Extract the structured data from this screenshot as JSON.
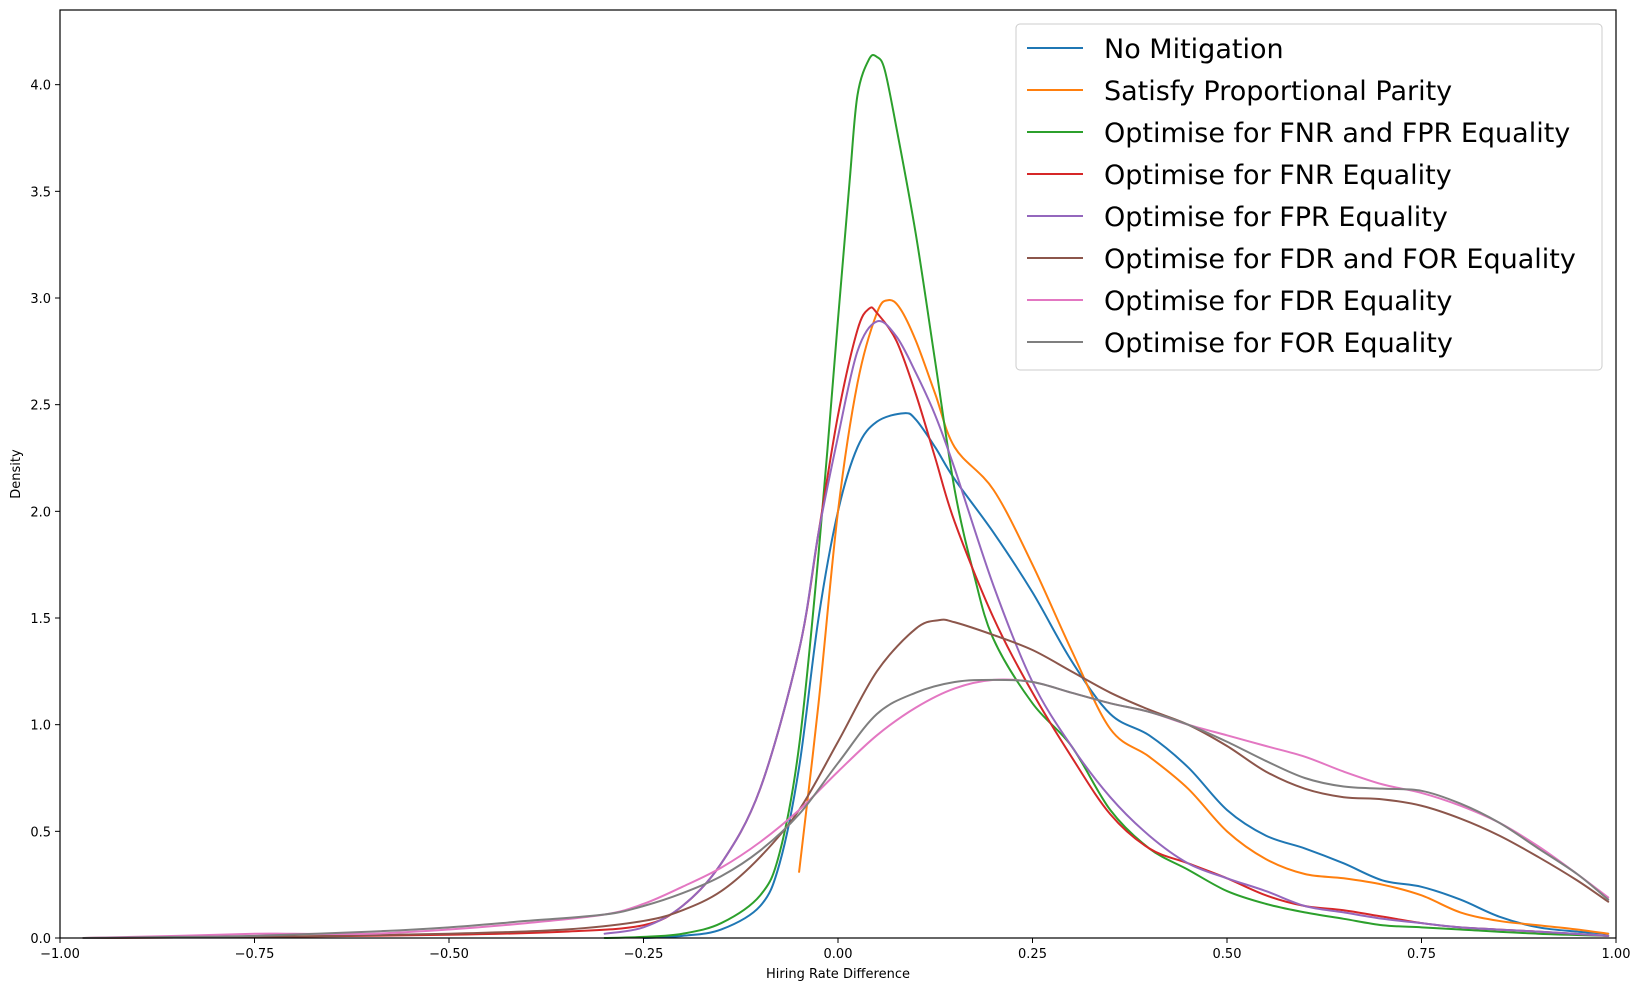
{
  "chart_data": {
    "type": "line",
    "title": "",
    "xlabel": "Hiring Rate Difference",
    "ylabel": "Density",
    "xlim": [
      -1.0,
      1.0
    ],
    "ylim": [
      0.0,
      4.35
    ],
    "xticks": [
      -1.0,
      -0.75,
      -0.5,
      -0.25,
      0.0,
      0.25,
      0.5,
      0.75,
      1.0
    ],
    "xtick_labels": [
      "−1.00",
      "−0.75",
      "−0.50",
      "−0.25",
      "0.00",
      "0.25",
      "0.50",
      "0.75",
      "1.00"
    ],
    "yticks": [
      0.0,
      0.5,
      1.0,
      1.5,
      2.0,
      2.5,
      3.0,
      3.5,
      4.0
    ],
    "ytick_labels": [
      "0.0",
      "0.5",
      "1.0",
      "1.5",
      "2.0",
      "2.5",
      "3.0",
      "3.5",
      "4.0"
    ],
    "grid": false,
    "legend_position": "top-right",
    "series": [
      {
        "name": "No Mitigation",
        "color": "#1f77b4",
        "points": [
          [
            -0.25,
            0.0
          ],
          [
            -0.2,
            0.01
          ],
          [
            -0.15,
            0.04
          ],
          [
            -0.1,
            0.15
          ],
          [
            -0.075,
            0.35
          ],
          [
            -0.05,
            0.8
          ],
          [
            -0.025,
            1.5
          ],
          [
            0.0,
            2.0
          ],
          [
            0.025,
            2.3
          ],
          [
            0.05,
            2.42
          ],
          [
            0.085,
            2.46
          ],
          [
            0.1,
            2.43
          ],
          [
            0.125,
            2.3
          ],
          [
            0.15,
            2.15
          ],
          [
            0.2,
            1.9
          ],
          [
            0.25,
            1.62
          ],
          [
            0.3,
            1.3
          ],
          [
            0.35,
            1.05
          ],
          [
            0.4,
            0.95
          ],
          [
            0.45,
            0.8
          ],
          [
            0.5,
            0.6
          ],
          [
            0.55,
            0.48
          ],
          [
            0.6,
            0.42
          ],
          [
            0.65,
            0.35
          ],
          [
            0.7,
            0.27
          ],
          [
            0.75,
            0.24
          ],
          [
            0.8,
            0.18
          ],
          [
            0.85,
            0.1
          ],
          [
            0.9,
            0.05
          ],
          [
            0.95,
            0.03
          ],
          [
            0.99,
            0.02
          ]
        ]
      },
      {
        "name": "Satisfy Proportional Parity",
        "color": "#ff7f0e",
        "points": [
          [
            -0.05,
            0.31
          ],
          [
            -0.025,
            1.1
          ],
          [
            0.0,
            2.0
          ],
          [
            0.025,
            2.6
          ],
          [
            0.05,
            2.93
          ],
          [
            0.065,
            2.99
          ],
          [
            0.08,
            2.95
          ],
          [
            0.1,
            2.8
          ],
          [
            0.125,
            2.55
          ],
          [
            0.15,
            2.3
          ],
          [
            0.2,
            2.1
          ],
          [
            0.25,
            1.75
          ],
          [
            0.3,
            1.35
          ],
          [
            0.35,
            0.98
          ],
          [
            0.4,
            0.85
          ],
          [
            0.45,
            0.7
          ],
          [
            0.5,
            0.5
          ],
          [
            0.55,
            0.37
          ],
          [
            0.6,
            0.3
          ],
          [
            0.65,
            0.28
          ],
          [
            0.7,
            0.25
          ],
          [
            0.75,
            0.2
          ],
          [
            0.8,
            0.12
          ],
          [
            0.85,
            0.08
          ],
          [
            0.9,
            0.06
          ],
          [
            0.95,
            0.04
          ],
          [
            0.99,
            0.02
          ]
        ]
      },
      {
        "name": "Optimise for FNR and FPR Equality",
        "color": "#2ca02c",
        "points": [
          [
            -0.3,
            0.0
          ],
          [
            -0.25,
            0.005
          ],
          [
            -0.2,
            0.02
          ],
          [
            -0.15,
            0.07
          ],
          [
            -0.1,
            0.2
          ],
          [
            -0.075,
            0.4
          ],
          [
            -0.05,
            0.9
          ],
          [
            -0.025,
            1.8
          ],
          [
            0.0,
            2.9
          ],
          [
            0.015,
            3.55
          ],
          [
            0.025,
            3.95
          ],
          [
            0.04,
            4.12
          ],
          [
            0.05,
            4.13
          ],
          [
            0.06,
            4.07
          ],
          [
            0.075,
            3.8
          ],
          [
            0.1,
            3.3
          ],
          [
            0.125,
            2.7
          ],
          [
            0.15,
            2.1
          ],
          [
            0.175,
            1.7
          ],
          [
            0.2,
            1.4
          ],
          [
            0.25,
            1.1
          ],
          [
            0.3,
            0.9
          ],
          [
            0.35,
            0.6
          ],
          [
            0.4,
            0.42
          ],
          [
            0.45,
            0.32
          ],
          [
            0.5,
            0.22
          ],
          [
            0.55,
            0.16
          ],
          [
            0.6,
            0.12
          ],
          [
            0.65,
            0.09
          ],
          [
            0.7,
            0.06
          ],
          [
            0.75,
            0.05
          ],
          [
            0.8,
            0.04
          ],
          [
            0.9,
            0.02
          ],
          [
            0.99,
            0.01
          ]
        ]
      },
      {
        "name": "Optimise for FNR Equality",
        "color": "#d62728",
        "points": [
          [
            -0.97,
            0.0
          ],
          [
            -0.75,
            0.005
          ],
          [
            -0.5,
            0.015
          ],
          [
            -0.35,
            0.03
          ],
          [
            -0.25,
            0.06
          ],
          [
            -0.2,
            0.15
          ],
          [
            -0.15,
            0.35
          ],
          [
            -0.1,
            0.7
          ],
          [
            -0.05,
            1.35
          ],
          [
            -0.025,
            1.9
          ],
          [
            0.0,
            2.45
          ],
          [
            0.025,
            2.85
          ],
          [
            0.04,
            2.95
          ],
          [
            0.05,
            2.93
          ],
          [
            0.075,
            2.8
          ],
          [
            0.1,
            2.55
          ],
          [
            0.125,
            2.25
          ],
          [
            0.15,
            1.95
          ],
          [
            0.2,
            1.5
          ],
          [
            0.25,
            1.15
          ],
          [
            0.3,
            0.85
          ],
          [
            0.35,
            0.58
          ],
          [
            0.4,
            0.42
          ],
          [
            0.45,
            0.35
          ],
          [
            0.5,
            0.28
          ],
          [
            0.55,
            0.2
          ],
          [
            0.6,
            0.15
          ],
          [
            0.65,
            0.13
          ],
          [
            0.7,
            0.1
          ],
          [
            0.75,
            0.07
          ],
          [
            0.8,
            0.05
          ],
          [
            0.9,
            0.03
          ],
          [
            0.99,
            0.01
          ]
        ]
      },
      {
        "name": "Optimise for FPR Equality",
        "color": "#9467bd",
        "points": [
          [
            -0.3,
            0.02
          ],
          [
            -0.25,
            0.05
          ],
          [
            -0.2,
            0.15
          ],
          [
            -0.15,
            0.35
          ],
          [
            -0.1,
            0.7
          ],
          [
            -0.05,
            1.35
          ],
          [
            -0.025,
            1.9
          ],
          [
            0.0,
            2.35
          ],
          [
            0.025,
            2.75
          ],
          [
            0.05,
            2.89
          ],
          [
            0.075,
            2.82
          ],
          [
            0.1,
            2.65
          ],
          [
            0.125,
            2.45
          ],
          [
            0.15,
            2.2
          ],
          [
            0.2,
            1.65
          ],
          [
            0.25,
            1.2
          ],
          [
            0.3,
            0.9
          ],
          [
            0.35,
            0.66
          ],
          [
            0.4,
            0.48
          ],
          [
            0.45,
            0.35
          ],
          [
            0.5,
            0.28
          ],
          [
            0.55,
            0.22
          ],
          [
            0.6,
            0.15
          ],
          [
            0.65,
            0.12
          ],
          [
            0.7,
            0.09
          ],
          [
            0.75,
            0.07
          ],
          [
            0.8,
            0.05
          ],
          [
            0.9,
            0.03
          ],
          [
            0.99,
            0.01
          ]
        ]
      },
      {
        "name": "Optimise for FDR and FOR Equality",
        "color": "#8c564b",
        "points": [
          [
            -0.97,
            0.0
          ],
          [
            -0.75,
            0.005
          ],
          [
            -0.5,
            0.02
          ],
          [
            -0.35,
            0.04
          ],
          [
            -0.25,
            0.08
          ],
          [
            -0.2,
            0.13
          ],
          [
            -0.15,
            0.22
          ],
          [
            -0.1,
            0.38
          ],
          [
            -0.05,
            0.6
          ],
          [
            0.0,
            0.92
          ],
          [
            0.05,
            1.25
          ],
          [
            0.1,
            1.45
          ],
          [
            0.13,
            1.49
          ],
          [
            0.15,
            1.48
          ],
          [
            0.2,
            1.42
          ],
          [
            0.25,
            1.35
          ],
          [
            0.3,
            1.25
          ],
          [
            0.35,
            1.15
          ],
          [
            0.4,
            1.07
          ],
          [
            0.45,
            1.0
          ],
          [
            0.5,
            0.9
          ],
          [
            0.55,
            0.78
          ],
          [
            0.6,
            0.7
          ],
          [
            0.65,
            0.66
          ],
          [
            0.7,
            0.65
          ],
          [
            0.75,
            0.62
          ],
          [
            0.8,
            0.56
          ],
          [
            0.85,
            0.48
          ],
          [
            0.9,
            0.38
          ],
          [
            0.95,
            0.27
          ],
          [
            0.99,
            0.17
          ]
        ]
      },
      {
        "name": "Optimise for FDR Equality",
        "color": "#e377c2",
        "points": [
          [
            -0.97,
            0.0
          ],
          [
            -0.85,
            0.01
          ],
          [
            -0.75,
            0.02
          ],
          [
            -0.7,
            0.02
          ],
          [
            -0.6,
            0.02
          ],
          [
            -0.5,
            0.04
          ],
          [
            -0.4,
            0.07
          ],
          [
            -0.3,
            0.11
          ],
          [
            -0.25,
            0.16
          ],
          [
            -0.2,
            0.24
          ],
          [
            -0.15,
            0.33
          ],
          [
            -0.1,
            0.45
          ],
          [
            -0.05,
            0.6
          ],
          [
            0.0,
            0.78
          ],
          [
            0.05,
            0.95
          ],
          [
            0.1,
            1.08
          ],
          [
            0.15,
            1.17
          ],
          [
            0.2,
            1.21
          ],
          [
            0.25,
            1.2
          ],
          [
            0.3,
            1.15
          ],
          [
            0.35,
            1.1
          ],
          [
            0.4,
            1.06
          ],
          [
            0.45,
            1.0
          ],
          [
            0.5,
            0.95
          ],
          [
            0.55,
            0.9
          ],
          [
            0.6,
            0.85
          ],
          [
            0.65,
            0.78
          ],
          [
            0.7,
            0.72
          ],
          [
            0.75,
            0.68
          ],
          [
            0.8,
            0.62
          ],
          [
            0.85,
            0.54
          ],
          [
            0.9,
            0.43
          ],
          [
            0.95,
            0.3
          ],
          [
            0.99,
            0.19
          ]
        ]
      },
      {
        "name": "Optimise for FOR Equality",
        "color": "#7f7f7f",
        "points": [
          [
            -0.97,
            0.0
          ],
          [
            -0.85,
            0.005
          ],
          [
            -0.75,
            0.01
          ],
          [
            -0.6,
            0.03
          ],
          [
            -0.5,
            0.05
          ],
          [
            -0.4,
            0.08
          ],
          [
            -0.3,
            0.11
          ],
          [
            -0.25,
            0.15
          ],
          [
            -0.2,
            0.21
          ],
          [
            -0.15,
            0.29
          ],
          [
            -0.1,
            0.41
          ],
          [
            -0.05,
            0.58
          ],
          [
            0.0,
            0.82
          ],
          [
            0.05,
            1.05
          ],
          [
            0.1,
            1.15
          ],
          [
            0.15,
            1.2
          ],
          [
            0.2,
            1.21
          ],
          [
            0.25,
            1.2
          ],
          [
            0.3,
            1.15
          ],
          [
            0.35,
            1.1
          ],
          [
            0.4,
            1.06
          ],
          [
            0.45,
            1.0
          ],
          [
            0.5,
            0.92
          ],
          [
            0.55,
            0.83
          ],
          [
            0.6,
            0.75
          ],
          [
            0.65,
            0.71
          ],
          [
            0.7,
            0.7
          ],
          [
            0.75,
            0.69
          ],
          [
            0.8,
            0.63
          ],
          [
            0.85,
            0.54
          ],
          [
            0.9,
            0.42
          ],
          [
            0.95,
            0.3
          ],
          [
            0.99,
            0.18
          ]
        ]
      }
    ]
  }
}
